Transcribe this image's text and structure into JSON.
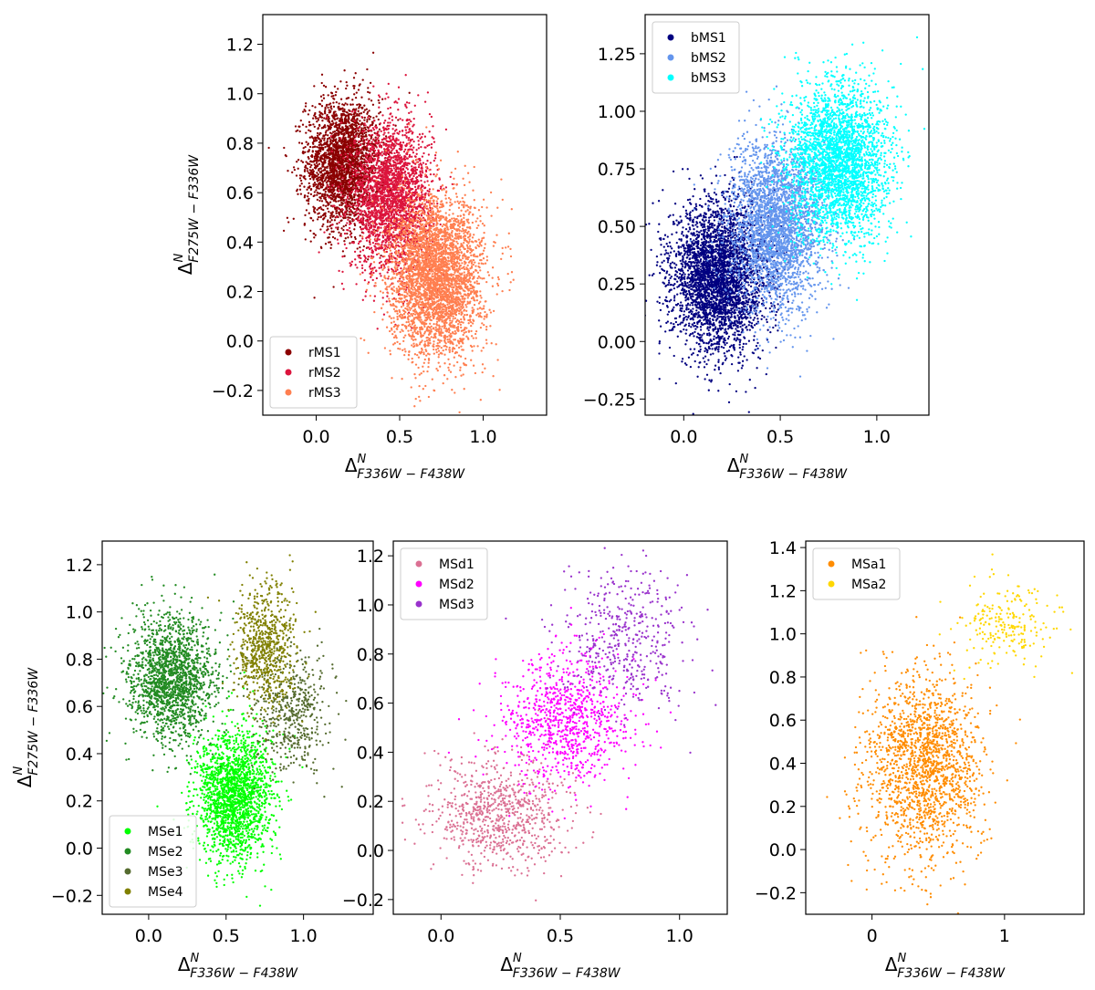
{
  "chart_data": [
    {
      "type": "scatter",
      "xlabel": {
        "base": "Δ",
        "sup": "N",
        "sub": "F336W − F438W"
      },
      "ylabel": {
        "base": "Δ",
        "sup": "N",
        "sub": "F275W − F336W"
      },
      "xlim": [
        -0.32,
        1.38
      ],
      "ylim": [
        -0.3,
        1.32
      ],
      "xticks": [
        0.0,
        0.5,
        1.0
      ],
      "xtick_labels": [
        "0.0",
        "0.5",
        "1.0"
      ],
      "yticks": [
        -0.2,
        0.0,
        0.2,
        0.4,
        0.6,
        0.8,
        1.0,
        1.2
      ],
      "ytick_labels": [
        "−0.2",
        "0.0",
        "0.2",
        "0.4",
        "0.6",
        "0.8",
        "1.0",
        "1.2"
      ],
      "legend_position": "bottom-left",
      "series": [
        {
          "name": "rMS1",
          "color": "#8b0000",
          "center": [
            0.16,
            0.72
          ],
          "spread": [
            0.11,
            0.13
          ],
          "count": 2600
        },
        {
          "name": "rMS2",
          "color": "#dc143c",
          "center": [
            0.45,
            0.58
          ],
          "spread": [
            0.12,
            0.15
          ],
          "count": 2600
        },
        {
          "name": "rMS3",
          "color": "#ff7f50",
          "center": [
            0.72,
            0.26
          ],
          "spread": [
            0.14,
            0.16
          ],
          "count": 3600
        }
      ]
    },
    {
      "type": "scatter",
      "xlabel": {
        "base": "Δ",
        "sup": "N",
        "sub": "F336W − F438W"
      },
      "ylabel": null,
      "xlim": [
        -0.2,
        1.27
      ],
      "ylim": [
        -0.32,
        1.42
      ],
      "xticks": [
        0.0,
        0.5,
        1.0
      ],
      "xtick_labels": [
        "0.0",
        "0.5",
        "1.0"
      ],
      "yticks": [
        -0.25,
        0.0,
        0.25,
        0.5,
        0.75,
        1.0,
        1.25
      ],
      "ytick_labels": [
        "−0.25",
        "0.00",
        "0.25",
        "0.50",
        "0.75",
        "1.00",
        "1.25"
      ],
      "legend_position": "top-left",
      "series": [
        {
          "name": "bMS1",
          "color": "#000080",
          "center": [
            0.18,
            0.28
          ],
          "spread": [
            0.12,
            0.16
          ],
          "count": 3500
        },
        {
          "name": "bMS2",
          "color": "#6495ed",
          "center": [
            0.48,
            0.5
          ],
          "spread": [
            0.12,
            0.18
          ],
          "count": 2800
        },
        {
          "name": "bMS3",
          "color": "#00ffff",
          "center": [
            0.8,
            0.78
          ],
          "spread": [
            0.13,
            0.17
          ],
          "count": 3000
        }
      ]
    },
    {
      "type": "scatter",
      "xlabel": {
        "base": "Δ",
        "sup": "N",
        "sub": "F336W − F438W"
      },
      "ylabel": {
        "base": "Δ",
        "sup": "N",
        "sub": "F275W − F336W"
      },
      "xlim": [
        -0.3,
        1.45
      ],
      "ylim": [
        -0.28,
        1.3
      ],
      "xticks": [
        0.0,
        0.5,
        1.0
      ],
      "xtick_labels": [
        "0.0",
        "0.5",
        "1.0"
      ],
      "yticks": [
        -0.2,
        0.0,
        0.2,
        0.4,
        0.6,
        0.8,
        1.0,
        1.2
      ],
      "ytick_labels": [
        "−0.2",
        "0.0",
        "0.2",
        "0.4",
        "0.6",
        "0.8",
        "1.0",
        "1.2"
      ],
      "legend_position": "bottom-left",
      "series": [
        {
          "name": "MSe1",
          "color": "#00ff00",
          "center": [
            0.55,
            0.22
          ],
          "spread": [
            0.12,
            0.14
          ],
          "count": 1900
        },
        {
          "name": "MSe2",
          "color": "#228b22",
          "center": [
            0.15,
            0.72
          ],
          "spread": [
            0.14,
            0.13
          ],
          "count": 1700
        },
        {
          "name": "MSe3",
          "color": "#556b2f",
          "center": [
            0.92,
            0.58
          ],
          "spread": [
            0.12,
            0.13
          ],
          "count": 500
        },
        {
          "name": "MSe4",
          "color": "#808000",
          "center": [
            0.75,
            0.85
          ],
          "spread": [
            0.1,
            0.13
          ],
          "count": 700
        }
      ]
    },
    {
      "type": "scatter",
      "xlabel": {
        "base": "Δ",
        "sup": "N",
        "sub": "F336W − F438W"
      },
      "ylabel": null,
      "xlim": [
        -0.2,
        1.2
      ],
      "ylim": [
        -0.26,
        1.26
      ],
      "xticks": [
        0.0,
        0.5,
        1.0
      ],
      "xtick_labels": [
        "0.0",
        "0.5",
        "1.0"
      ],
      "yticks": [
        -0.2,
        0.0,
        0.2,
        0.4,
        0.6,
        0.8,
        1.0,
        1.2
      ],
      "ytick_labels": [
        "−0.2",
        "0.0",
        "0.2",
        "0.4",
        "0.6",
        "0.8",
        "1.0",
        "1.2"
      ],
      "legend_position": "top-left",
      "series": [
        {
          "name": "MSd1",
          "color": "#db7093",
          "center": [
            0.25,
            0.15
          ],
          "spread": [
            0.14,
            0.12
          ],
          "count": 800
        },
        {
          "name": "MSd2",
          "color": "#ff00ff",
          "center": [
            0.52,
            0.52
          ],
          "spread": [
            0.13,
            0.13
          ],
          "count": 900
        },
        {
          "name": "MSd3",
          "color": "#9932cc",
          "center": [
            0.78,
            0.85
          ],
          "spread": [
            0.13,
            0.14
          ],
          "count": 450
        }
      ]
    },
    {
      "type": "scatter",
      "xlabel": {
        "base": "Δ",
        "sup": "N",
        "sub": "F336W − F438W"
      },
      "ylabel": null,
      "xlim": [
        -0.5,
        1.6
      ],
      "ylim": [
        -0.3,
        1.43
      ],
      "xticks": [
        0,
        1
      ],
      "xtick_labels": [
        "0",
        "1"
      ],
      "yticks": [
        -0.2,
        0.0,
        0.2,
        0.4,
        0.6,
        0.8,
        1.0,
        1.2,
        1.4
      ],
      "ytick_labels": [
        "−0.2",
        "0.0",
        "0.2",
        "0.4",
        "0.6",
        "0.8",
        "1.0",
        "1.2",
        "1.4"
      ],
      "legend_position": "top-left",
      "series": [
        {
          "name": "MSa1",
          "color": "#ff8c00",
          "center": [
            0.4,
            0.38
          ],
          "spread": [
            0.22,
            0.22
          ],
          "count": 1700
        },
        {
          "name": "MSa2",
          "color": "#ffd700",
          "center": [
            1.0,
            1.05
          ],
          "spread": [
            0.18,
            0.1
          ],
          "count": 220
        }
      ]
    }
  ]
}
